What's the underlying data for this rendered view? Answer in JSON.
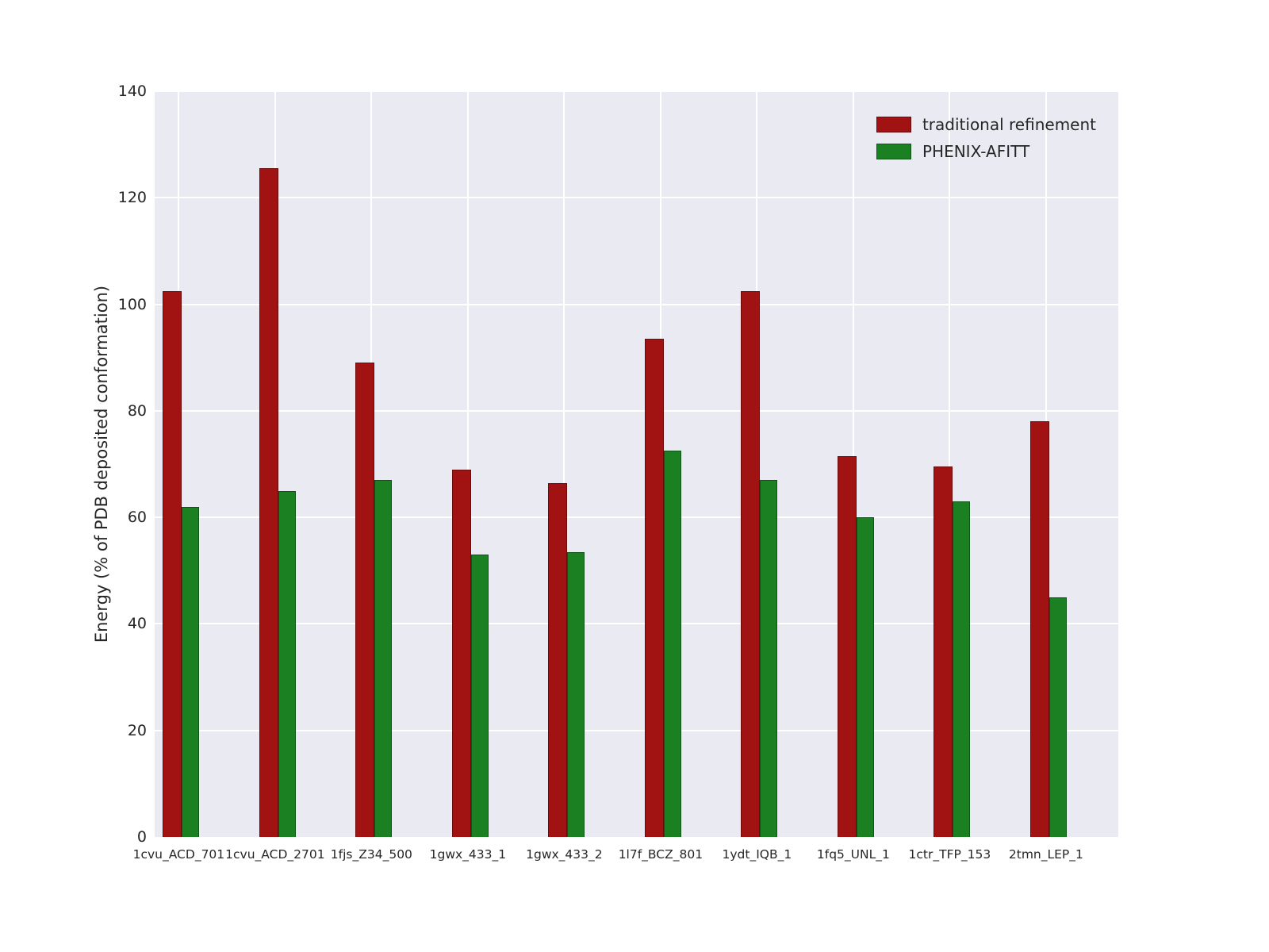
{
  "figure": {
    "ylabel": "Energy (% of PDB deposited conformation)"
  },
  "chart_data": {
    "type": "bar",
    "title": "",
    "xlabel": "",
    "ylabel": "Energy (% of PDB deposited conformation)",
    "categories": [
      "1cvu_ACD_701",
      "1cvu_ACD_2701",
      "1fjs_Z34_500",
      "1gwx_433_1",
      "1gwx_433_2",
      "1l7f_BCZ_801",
      "1ydt_IQB_1",
      "1fq5_UNL_1",
      "1ctr_TFP_153",
      "2tmn_LEP_1"
    ],
    "series": [
      {
        "name": "traditional refinement",
        "color": "#a11212",
        "values": [
          102.5,
          125.5,
          89.0,
          69.0,
          66.5,
          93.5,
          102.5,
          71.5,
          69.5,
          78.0
        ]
      },
      {
        "name": "PHENIX-AFITT",
        "color": "#1a8022",
        "values": [
          62.0,
          65.0,
          67.0,
          53.0,
          53.5,
          72.5,
          67.0,
          60.0,
          63.0,
          45.0
        ]
      }
    ],
    "ylim": [
      0,
      140
    ],
    "ytick_step": 20,
    "yticks": [
      0,
      20,
      40,
      60,
      80,
      100,
      120,
      140
    ],
    "grid": true,
    "grid_color": "#ffffff",
    "plot_background": "#eaeaf2",
    "legend_position": "upper right",
    "legend_frame": false
  }
}
